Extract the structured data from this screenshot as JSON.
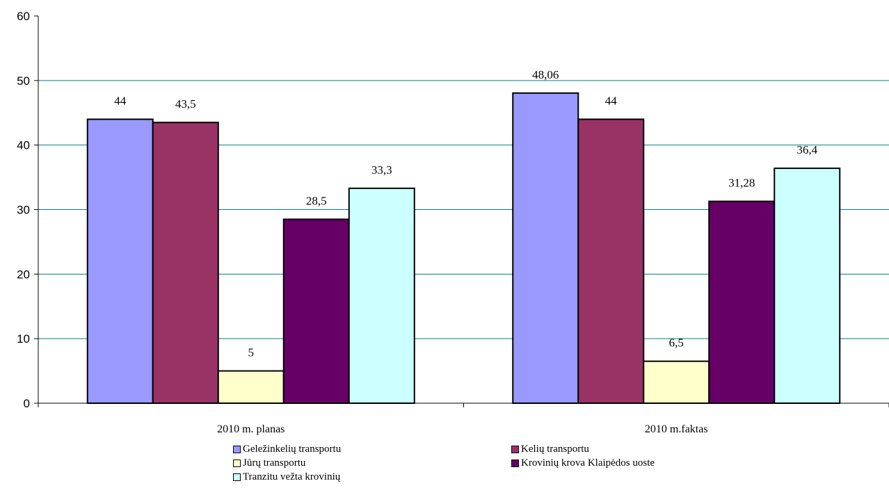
{
  "chart_data": {
    "type": "bar",
    "categories": [
      "2010 m. planas",
      "2010 m.faktas"
    ],
    "series": [
      {
        "name": "Geležinkelių transportu",
        "values": [
          44,
          48.06
        ],
        "labels": [
          "44",
          "48,06"
        ],
        "color": "#9999FF"
      },
      {
        "name": "Kelių transportu",
        "values": [
          43.5,
          44
        ],
        "labels": [
          "43,5",
          "44"
        ],
        "color": "#993366"
      },
      {
        "name": "Jūrų transportu",
        "values": [
          5,
          6.5
        ],
        "labels": [
          "5",
          "6,5"
        ],
        "color": "#FFFFCC"
      },
      {
        "name": "Krovinių krova Klaipėdos uoste",
        "values": [
          28.5,
          31.28
        ],
        "labels": [
          "28,5",
          "31,28"
        ],
        "color": "#660066"
      },
      {
        "name": "Tranzitu vežta krovinių",
        "values": [
          33.3,
          36.4
        ],
        "labels": [
          "33,3",
          "36,4"
        ],
        "color": "#CCFFFF"
      }
    ],
    "ylim": [
      0,
      60
    ],
    "yticks": [
      "0",
      "10",
      "20",
      "30",
      "40",
      "50",
      "60"
    ],
    "gridline_color": "#008080",
    "grid": true,
    "legend_position": "bottom",
    "title": "",
    "xlabel": "",
    "ylabel": ""
  }
}
